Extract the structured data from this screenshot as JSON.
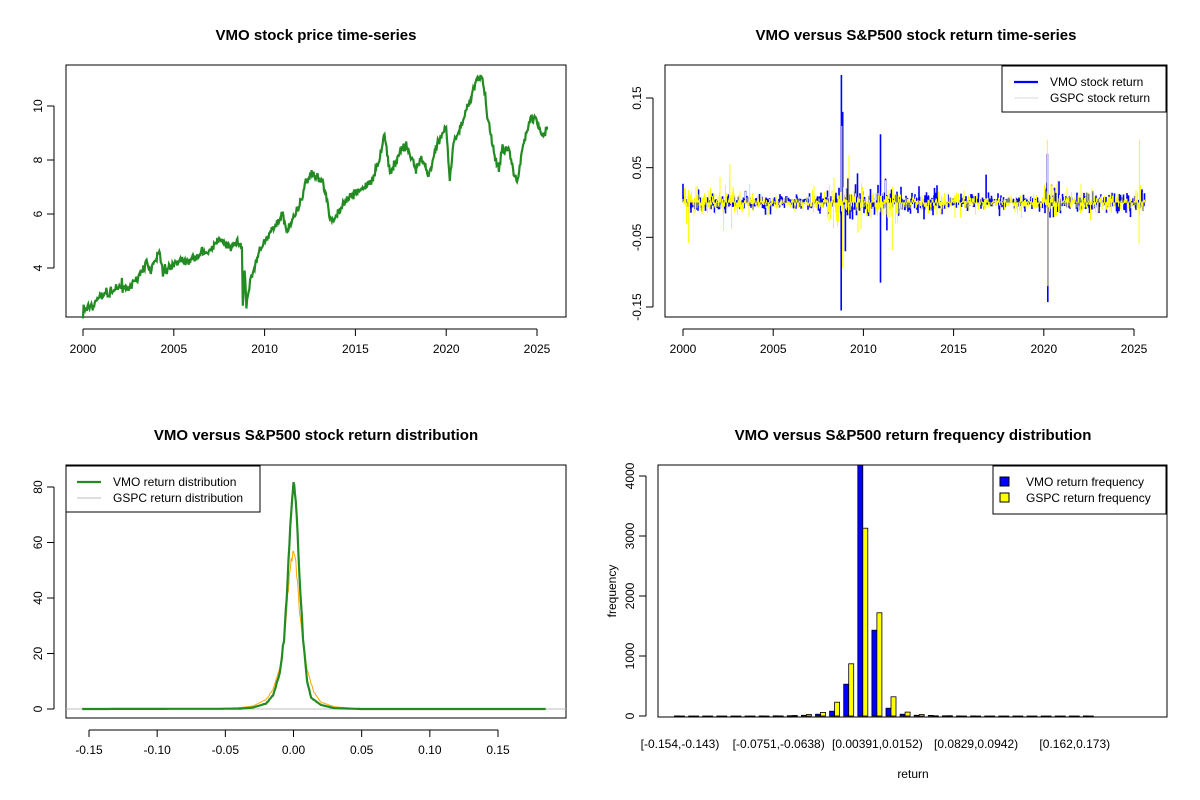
{
  "chart_data": [
    {
      "type": "line",
      "title": "VMO stock price time-series",
      "xlabel": "",
      "ylabel": "",
      "xlim": [
        1999.1,
        2026.6
      ],
      "ylim": [
        2.2,
        11.4
      ],
      "xticks": [
        2000,
        2005,
        2010,
        2015,
        2020,
        2025
      ],
      "yticks": [
        4,
        6,
        8,
        10
      ],
      "series": [
        {
          "name": "VMO price",
          "color": "#228B22",
          "points": [
            [
              2000,
              2.5
            ],
            [
              2000.5,
              2.6
            ],
            [
              2001,
              3.0
            ],
            [
              2001.5,
              3.1
            ],
            [
              2002,
              3.3
            ],
            [
              2002.5,
              3.3
            ],
            [
              2003,
              3.6
            ],
            [
              2003.5,
              4.2
            ],
            [
              2003.7,
              3.9
            ],
            [
              2004.2,
              4.6
            ],
            [
              2004.4,
              3.8
            ],
            [
              2005,
              4.1
            ],
            [
              2005.5,
              4.3
            ],
            [
              2006,
              4.3
            ],
            [
              2006.5,
              4.5
            ],
            [
              2007,
              4.6
            ],
            [
              2007.5,
              5.1
            ],
            [
              2008,
              4.8
            ],
            [
              2008.5,
              4.9
            ],
            [
              2008.75,
              4.8
            ],
            [
              2008.8,
              2.6
            ],
            [
              2008.9,
              4.0
            ],
            [
              2009.0,
              2.6
            ],
            [
              2009.2,
              3.5
            ],
            [
              2009.7,
              4.6
            ],
            [
              2010,
              5.0
            ],
            [
              2010.5,
              5.5
            ],
            [
              2011,
              6.0
            ],
            [
              2011.2,
              5.4
            ],
            [
              2011.7,
              6.0
            ],
            [
              2012,
              6.5
            ],
            [
              2012.25,
              7.2
            ],
            [
              2012.7,
              7.5
            ],
            [
              2013.2,
              7.2
            ],
            [
              2013.7,
              5.7
            ],
            [
              2014,
              6.0
            ],
            [
              2014.5,
              6.5
            ],
            [
              2015,
              6.8
            ],
            [
              2015.5,
              7.0
            ],
            [
              2016,
              7.3
            ],
            [
              2016.5,
              8.5
            ],
            [
              2016.6,
              9.0
            ],
            [
              2016.9,
              7.5
            ],
            [
              2017.5,
              8.3
            ],
            [
              2017.8,
              8.5
            ],
            [
              2018.3,
              7.8
            ],
            [
              2018.7,
              8.0
            ],
            [
              2019,
              7.5
            ],
            [
              2019.5,
              8.5
            ],
            [
              2019.8,
              9.0
            ],
            [
              2020.0,
              9.2
            ],
            [
              2020.2,
              7.2
            ],
            [
              2020.4,
              8.6
            ],
            [
              2020.8,
              9.2
            ],
            [
              2021.2,
              10.0
            ],
            [
              2021.7,
              11.1
            ],
            [
              2022.0,
              11.1
            ],
            [
              2022.3,
              9.5
            ],
            [
              2022.7,
              8.0
            ],
            [
              2022.9,
              7.7
            ],
            [
              2023.1,
              8.5
            ],
            [
              2023.5,
              8.3
            ],
            [
              2023.9,
              7.1
            ],
            [
              2024.2,
              8.5
            ],
            [
              2024.6,
              9.4
            ],
            [
              2024.9,
              9.6
            ],
            [
              2025.3,
              8.9
            ],
            [
              2025.6,
              9.2
            ]
          ]
        }
      ]
    },
    {
      "type": "line",
      "title": "VMO versus S&P500 stock return time-series",
      "xlim": [
        1999.1,
        2026.6
      ],
      "ylim": [
        -0.17,
        0.19
      ],
      "xticks": [
        2000,
        2005,
        2010,
        2015,
        2020,
        2025
      ],
      "yticks": [
        -0.15,
        -0.05,
        0.05,
        0.15
      ],
      "ytick_labels": [
        "-0.15",
        "-0.05",
        "0.05",
        "0.15"
      ],
      "legend": {
        "position": "top-right",
        "entries": [
          "VMO stock return",
          "GSPC stock return"
        ]
      },
      "series": [
        {
          "name": "VMO stock return",
          "color": "#0000FF",
          "volatility_by_year": [
            0.015,
            0.014,
            0.014,
            0.012,
            0.013,
            0.01,
            0.01,
            0.012,
            0.025,
            0.03,
            0.02,
            0.025,
            0.018,
            0.02,
            0.014,
            0.014,
            0.016,
            0.012,
            0.01,
            0.01,
            0.025,
            0.012,
            0.016,
            0.015,
            0.014,
            0.016
          ],
          "spikes": [
            [
              2008.78,
              0.183
            ],
            [
              2008.77,
              -0.155
            ],
            [
              2008.85,
              0.13
            ],
            [
              2009.0,
              -0.07
            ],
            [
              2010.95,
              0.098
            ],
            [
              2010.95,
              -0.115
            ],
            [
              2020.2,
              0.07
            ],
            [
              2020.22,
              -0.143
            ],
            [
              2011.3,
              -0.04
            ],
            [
              2016.8,
              0.04
            ]
          ]
        },
        {
          "name": "GSPC stock return",
          "color": "#FFFF00",
          "volatility_by_year": [
            0.022,
            0.02,
            0.025,
            0.017,
            0.012,
            0.009,
            0.009,
            0.014,
            0.03,
            0.025,
            0.018,
            0.022,
            0.012,
            0.012,
            0.011,
            0.014,
            0.012,
            0.007,
            0.012,
            0.011,
            0.025,
            0.015,
            0.02,
            0.014,
            0.011,
            0.02
          ],
          "spikes": [
            [
              2008.8,
              0.11
            ],
            [
              2008.85,
              -0.095
            ],
            [
              2009.2,
              0.068
            ],
            [
              2011.6,
              -0.068
            ],
            [
              2020.2,
              0.09
            ],
            [
              2020.22,
              -0.12
            ],
            [
              2025.3,
              0.09
            ],
            [
              2025.28,
              -0.06
            ],
            [
              2000.3,
              -0.058
            ],
            [
              2002.6,
              0.055
            ]
          ]
        }
      ]
    },
    {
      "type": "line",
      "title": "VMO versus S&P500 stock return distribution",
      "xlim": [
        -0.165,
        0.197
      ],
      "ylim": [
        -2,
        87
      ],
      "xticks": [
        -0.15,
        -0.1,
        -0.05,
        0.0,
        0.05,
        0.1,
        0.15
      ],
      "xtick_labels": [
        "-0.15",
        "-0.10",
        "-0.05",
        "0.00",
        "0.05",
        "0.10",
        "0.15"
      ],
      "yticks": [
        0,
        20,
        40,
        60,
        80
      ],
      "legend": {
        "position": "top-left",
        "entries": [
          "VMO return distribution",
          "GSPC return distribution"
        ]
      },
      "series": [
        {
          "name": "VMO return distribution",
          "color": "#228B22",
          "points": [
            [
              -0.155,
              0
            ],
            [
              -0.04,
              0.1
            ],
            [
              -0.03,
              0.5
            ],
            [
              -0.02,
              2
            ],
            [
              -0.015,
              5
            ],
            [
              -0.01,
              13
            ],
            [
              -0.007,
              25
            ],
            [
              -0.005,
              40
            ],
            [
              -0.003,
              60
            ],
            [
              -0.001,
              78
            ],
            [
              0,
              82
            ],
            [
              0.001,
              80
            ],
            [
              0.003,
              62
            ],
            [
              0.005,
              42
            ],
            [
              0.007,
              25
            ],
            [
              0.01,
              10
            ],
            [
              0.013,
              4
            ],
            [
              0.02,
              1.5
            ],
            [
              0.03,
              0.3
            ],
            [
              0.05,
              0
            ],
            [
              0.185,
              0
            ]
          ]
        },
        {
          "name": "GSPC return distribution",
          "color": "#FFA500",
          "points": [
            [
              -0.062,
              0
            ],
            [
              -0.04,
              0.5
            ],
            [
              -0.03,
              1
            ],
            [
              -0.02,
              3.5
            ],
            [
              -0.015,
              7
            ],
            [
              -0.01,
              15
            ],
            [
              -0.007,
              25
            ],
            [
              -0.005,
              35
            ],
            [
              -0.003,
              48
            ],
            [
              -0.001,
              56
            ],
            [
              0,
              57
            ],
            [
              0.001,
              55
            ],
            [
              0.003,
              45
            ],
            [
              0.005,
              33
            ],
            [
              0.007,
              24
            ],
            [
              0.01,
              14
            ],
            [
              0.015,
              6
            ],
            [
              0.02,
              2.5
            ],
            [
              0.03,
              0.8
            ],
            [
              0.045,
              0.2
            ],
            [
              0.05,
              0
            ]
          ]
        }
      ]
    },
    {
      "type": "bar",
      "title": "VMO versus S&P500 return frequency distribution",
      "xlabel": "return",
      "ylabel": "frequency",
      "ylim": [
        0,
        4183
      ],
      "yticks": [
        0,
        1000,
        2000,
        3000,
        4000
      ],
      "shown_bin_labels": [
        [
          0,
          "[-0.154,-0.143)"
        ],
        [
          7,
          "[-0.0751,-0.0638)"
        ],
        [
          14,
          "[0.00391,0.0152)"
        ],
        [
          21,
          "[0.0829,0.0942)"
        ],
        [
          28,
          "[0.162,0.173)"
        ]
      ],
      "legend": {
        "position": "top-right",
        "entries": [
          "VMO return frequency",
          "GSPC return frequency"
        ]
      },
      "series": [
        {
          "name": "VMO return frequency",
          "color": "#0000FF",
          "values": [
            1,
            0,
            0,
            0,
            0,
            0,
            1,
            3,
            5,
            12,
            30,
            80,
            530,
            4250,
            1430,
            130,
            30,
            12,
            10,
            4,
            1,
            1,
            0,
            0,
            0,
            0,
            0,
            0,
            0,
            1
          ]
        },
        {
          "name": "GSPC return frequency",
          "color": "#FFFF00",
          "values": [
            0,
            0,
            0,
            0,
            0,
            0,
            0,
            1,
            8,
            25,
            60,
            230,
            870,
            3130,
            1720,
            320,
            65,
            25,
            3,
            5,
            0,
            0,
            0,
            0,
            0,
            0,
            0,
            0,
            0,
            0
          ]
        }
      ]
    }
  ]
}
